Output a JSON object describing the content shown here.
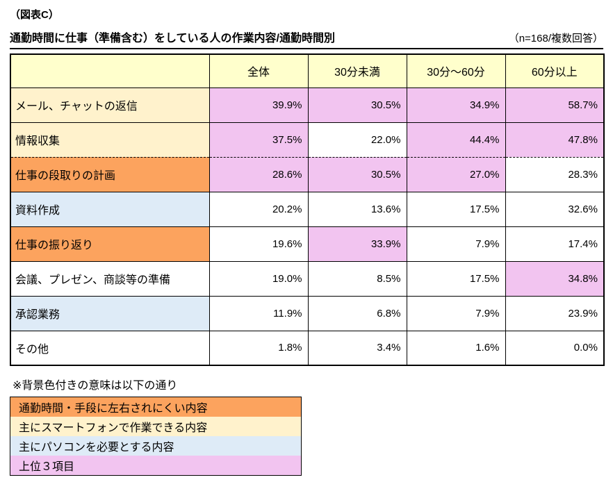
{
  "figure_label": "（図表C）",
  "title": "通勤時間に仕事（準備含む）をしている人の作業内容/通勤時間別",
  "sample_note": "（n=168/複数回答）",
  "colors": {
    "header": "#FFFFCC",
    "independent": "#FCA35E",
    "smartphone": "#FFF2CC",
    "pc": "#DEEBF7",
    "none": "#FFFFFF",
    "top3": "#F2C4F0"
  },
  "chart_data": {
    "type": "table",
    "columns": [
      "全体",
      "30分未満",
      "30分～60分",
      "60分以上"
    ],
    "value_unit": "%",
    "rows": [
      {
        "label": "メール、チャットの返信",
        "category": "smartphone",
        "values": [
          39.9,
          30.5,
          34.9,
          58.7
        ],
        "top3": [
          true,
          true,
          true,
          true
        ]
      },
      {
        "label": "情報収集",
        "category": "smartphone",
        "values": [
          37.5,
          22.0,
          44.4,
          47.8
        ],
        "top3": [
          true,
          false,
          true,
          true
        ]
      },
      {
        "label": "仕事の段取りの計画",
        "category": "independent",
        "values": [
          28.6,
          30.5,
          27.0,
          28.3
        ],
        "top3": [
          true,
          true,
          true,
          false
        ]
      },
      {
        "label": "資料作成",
        "category": "pc",
        "values": [
          20.2,
          13.6,
          17.5,
          32.6
        ],
        "top3": [
          false,
          false,
          false,
          false
        ]
      },
      {
        "label": "仕事の振り返り",
        "category": "independent",
        "values": [
          19.6,
          33.9,
          7.9,
          17.4
        ],
        "top3": [
          false,
          true,
          false,
          false
        ]
      },
      {
        "label": "会議、プレゼン、商談等の準備",
        "category": "none",
        "values": [
          19.0,
          8.5,
          17.5,
          34.8
        ],
        "top3": [
          false,
          false,
          false,
          true
        ]
      },
      {
        "label": "承認業務",
        "category": "pc",
        "values": [
          11.9,
          6.8,
          7.9,
          23.9
        ],
        "top3": [
          false,
          false,
          false,
          false
        ]
      },
      {
        "label": "その他",
        "category": "none",
        "values": [
          1.8,
          3.4,
          1.6,
          0.0
        ],
        "top3": [
          false,
          false,
          false,
          false
        ]
      }
    ]
  },
  "legend": {
    "note": "※背景色付きの意味は以下の通り",
    "items": [
      {
        "label": "通勤時間・手段に左右されにくい内容",
        "color": "#FCA35E"
      },
      {
        "label": "主にスマートフォンで作業できる内容",
        "color": "#FFF2CC"
      },
      {
        "label": "主にパソコンを必要とする内容",
        "color": "#DEEBF7"
      },
      {
        "label": "上位３項目",
        "color": "#F2C4F0"
      }
    ]
  }
}
